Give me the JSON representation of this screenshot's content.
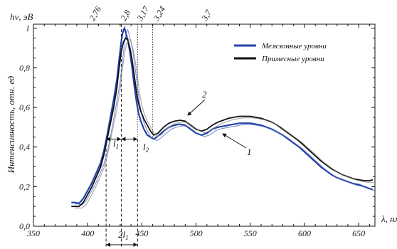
{
  "chart_data": {
    "type": "line",
    "xlabel": "λ, нм",
    "ylabel": "Интенсивность, отн. ед",
    "top_axis_label": "hν, эВ",
    "xlim": [
      350,
      665
    ],
    "ylim": [
      0,
      1.02
    ],
    "x_ticks": [
      "350",
      "400",
      "450",
      "500",
      "550",
      "600",
      "650"
    ],
    "y_ticks": [
      "0,0",
      "0,2",
      "0,4",
      "0,6",
      "0,8",
      "1"
    ],
    "top_ticks": [
      {
        "label": "2,76",
        "x": 450
      },
      {
        "label": "2,8",
        "x": 443
      },
      {
        "label": "3,17",
        "x": 391
      },
      {
        "label": "3,24",
        "x": 383
      },
      {
        "label": "3,7",
        "x": 335
      }
    ],
    "legend": {
      "placement": "top-right",
      "entries": [
        {
          "label": "Межзонные уровни",
          "color": "#2244aa"
        },
        {
          "label": "Примесные уровни",
          "color": "#111111"
        }
      ]
    },
    "series": [
      {
        "color": "#2244aa",
        "points": [
          [
            385,
            0.12
          ],
          [
            388,
            0.12
          ],
          [
            392,
            0.115
          ],
          [
            396,
            0.14
          ],
          [
            400,
            0.18
          ],
          [
            404,
            0.22
          ],
          [
            408,
            0.27
          ],
          [
            412,
            0.32
          ],
          [
            415,
            0.38
          ],
          [
            418,
            0.46
          ],
          [
            421,
            0.55
          ],
          [
            424,
            0.64
          ],
          [
            427,
            0.74
          ],
          [
            429,
            0.84
          ],
          [
            431,
            0.93
          ],
          [
            432,
            0.97
          ],
          [
            433,
            0.99
          ],
          [
            434,
            1.0
          ],
          [
            435,
            0.98
          ],
          [
            437,
            0.94
          ],
          [
            439,
            0.88
          ],
          [
            441,
            0.8
          ],
          [
            443,
            0.71
          ],
          [
            445,
            0.63
          ],
          [
            447,
            0.57
          ],
          [
            449,
            0.53
          ],
          [
            452,
            0.49
          ],
          [
            455,
            0.46
          ],
          [
            458,
            0.45
          ],
          [
            461,
            0.44
          ],
          [
            465,
            0.455
          ],
          [
            470,
            0.48
          ],
          [
            475,
            0.5
          ],
          [
            480,
            0.51
          ],
          [
            485,
            0.515
          ],
          [
            490,
            0.51
          ],
          [
            495,
            0.49
          ],
          [
            500,
            0.47
          ],
          [
            505,
            0.46
          ],
          [
            510,
            0.47
          ],
          [
            515,
            0.49
          ],
          [
            520,
            0.5
          ],
          [
            525,
            0.505
          ],
          [
            530,
            0.51
          ],
          [
            535,
            0.515
          ],
          [
            540,
            0.52
          ],
          [
            545,
            0.52
          ],
          [
            550,
            0.52
          ],
          [
            555,
            0.515
          ],
          [
            560,
            0.51
          ],
          [
            565,
            0.5
          ],
          [
            570,
            0.49
          ],
          [
            575,
            0.475
          ],
          [
            580,
            0.46
          ],
          [
            585,
            0.44
          ],
          [
            590,
            0.42
          ],
          [
            595,
            0.4
          ],
          [
            600,
            0.375
          ],
          [
            605,
            0.35
          ],
          [
            610,
            0.325
          ],
          [
            615,
            0.3
          ],
          [
            620,
            0.28
          ],
          [
            625,
            0.26
          ],
          [
            630,
            0.245
          ],
          [
            635,
            0.235
          ],
          [
            640,
            0.225
          ],
          [
            645,
            0.215
          ],
          [
            650,
            0.21
          ],
          [
            655,
            0.2
          ],
          [
            660,
            0.19
          ],
          [
            663,
            0.185
          ]
        ]
      },
      {
        "color": "#111111",
        "points": [
          [
            385,
            0.1
          ],
          [
            388,
            0.1
          ],
          [
            392,
            0.1
          ],
          [
            396,
            0.12
          ],
          [
            400,
            0.16
          ],
          [
            404,
            0.2
          ],
          [
            408,
            0.25
          ],
          [
            412,
            0.3
          ],
          [
            415,
            0.36
          ],
          [
            418,
            0.44
          ],
          [
            421,
            0.52
          ],
          [
            424,
            0.6
          ],
          [
            427,
            0.7
          ],
          [
            429,
            0.8
          ],
          [
            431,
            0.88
          ],
          [
            433,
            0.93
          ],
          [
            435,
            0.95
          ],
          [
            437,
            0.94
          ],
          [
            439,
            0.9
          ],
          [
            441,
            0.84
          ],
          [
            443,
            0.76
          ],
          [
            445,
            0.68
          ],
          [
            447,
            0.62
          ],
          [
            449,
            0.58
          ],
          [
            452,
            0.54
          ],
          [
            455,
            0.51
          ],
          [
            458,
            0.48
          ],
          [
            461,
            0.46
          ],
          [
            465,
            0.47
          ],
          [
            470,
            0.5
          ],
          [
            475,
            0.52
          ],
          [
            480,
            0.53
          ],
          [
            485,
            0.535
          ],
          [
            490,
            0.53
          ],
          [
            495,
            0.51
          ],
          [
            500,
            0.49
          ],
          [
            505,
            0.48
          ],
          [
            510,
            0.49
          ],
          [
            515,
            0.51
          ],
          [
            520,
            0.525
          ],
          [
            525,
            0.535
          ],
          [
            530,
            0.545
          ],
          [
            535,
            0.55
          ],
          [
            540,
            0.555
          ],
          [
            545,
            0.555
          ],
          [
            550,
            0.555
          ],
          [
            555,
            0.55
          ],
          [
            560,
            0.545
          ],
          [
            565,
            0.535
          ],
          [
            570,
            0.525
          ],
          [
            575,
            0.51
          ],
          [
            580,
            0.49
          ],
          [
            585,
            0.47
          ],
          [
            590,
            0.45
          ],
          [
            595,
            0.43
          ],
          [
            600,
            0.405
          ],
          [
            605,
            0.38
          ],
          [
            610,
            0.355
          ],
          [
            615,
            0.33
          ],
          [
            620,
            0.31
          ],
          [
            625,
            0.29
          ],
          [
            630,
            0.275
          ],
          [
            635,
            0.26
          ],
          [
            640,
            0.25
          ],
          [
            645,
            0.24
          ],
          [
            650,
            0.235
          ],
          [
            655,
            0.23
          ],
          [
            660,
            0.23
          ],
          [
            663,
            0.235
          ]
        ]
      }
    ],
    "reference_lines_x": [
      417,
      431,
      446
    ],
    "dotted_lines_x": [
      446,
      460
    ],
    "annotations": {
      "l1": "l",
      "l1_sub": "1",
      "l2": "l",
      "l2_sub": "2",
      "two_l1": "2l",
      "two_l1_sub": "1",
      "curve1_label": "1",
      "curve2_label": "2"
    }
  }
}
